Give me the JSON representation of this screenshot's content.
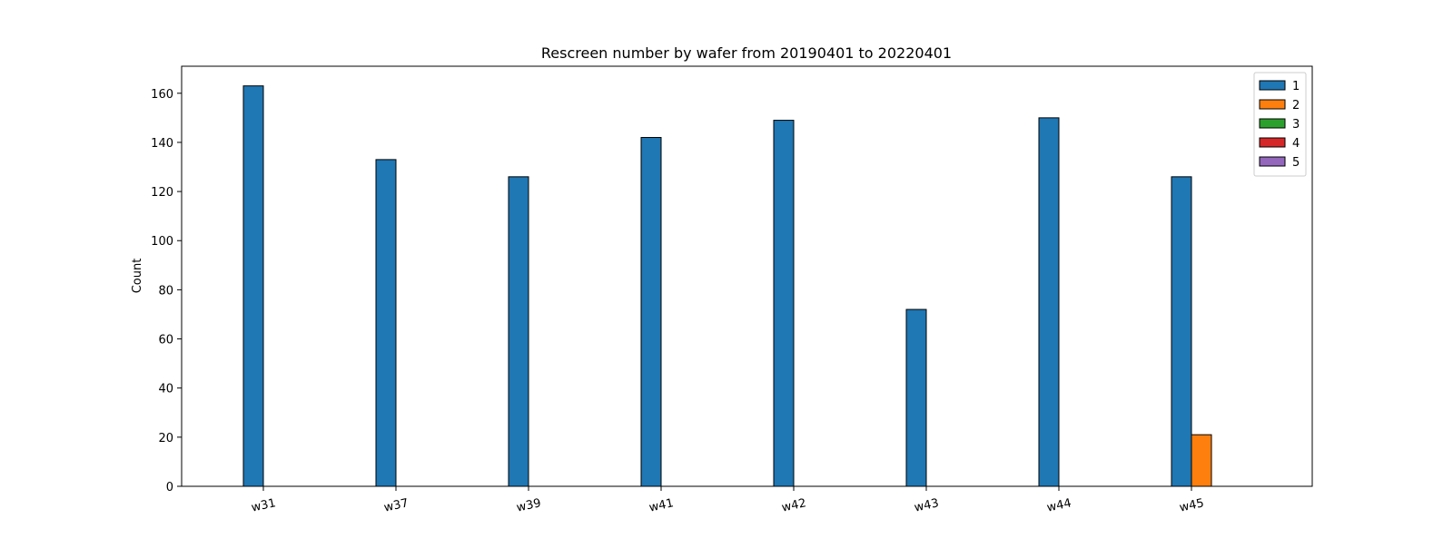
{
  "chart_data": {
    "type": "bar",
    "title": "Rescreen number  by wafer from 20190401 to 20220401",
    "xlabel": "",
    "ylabel": "Count",
    "ylim": [
      0,
      171
    ],
    "yticks": [
      0,
      20,
      40,
      60,
      80,
      100,
      120,
      140,
      160
    ],
    "categories": [
      "w31",
      "w37",
      "w39",
      "w41",
      "w42",
      "w43",
      "w44",
      "w45"
    ],
    "series": [
      {
        "name": "1",
        "color": "#1f77b4",
        "values": [
          163,
          133,
          126,
          142,
          149,
          72,
          150,
          126
        ]
      },
      {
        "name": "2",
        "color": "#ff7f0e",
        "values": [
          0,
          0,
          0,
          0,
          0,
          0,
          0,
          21
        ]
      },
      {
        "name": "3",
        "color": "#2ca02c",
        "values": [
          0,
          0,
          0,
          0,
          0,
          0,
          0,
          0
        ]
      },
      {
        "name": "4",
        "color": "#d62728",
        "values": [
          0,
          0,
          0,
          0,
          0,
          0,
          0,
          0
        ]
      },
      {
        "name": "5",
        "color": "#9467bd",
        "values": [
          0,
          0,
          0,
          0,
          0,
          0,
          0,
          0
        ]
      }
    ],
    "legend_position": "top-right",
    "grid": false,
    "bar_edge_color": "#000000",
    "xtick_rotation": "slight"
  }
}
